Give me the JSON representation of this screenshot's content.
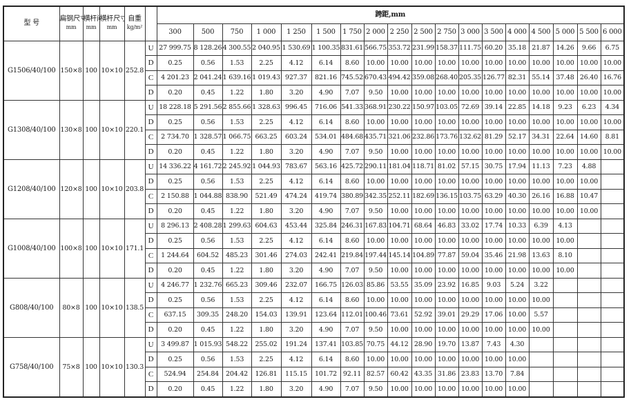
{
  "header": {
    "model": "型  号",
    "flat_steel": "扁钢尺寸",
    "flat_steel_unit": "mm",
    "bar_spacing": "横杆间距",
    "bar_spacing_unit": "mm",
    "bar_size": "横杆尺寸",
    "bar_size_unit": "mm",
    "weight": "自重",
    "weight_unit": "kg/m²",
    "span_title": "跨距,mm",
    "spans": [
      "300",
      "500",
      "750",
      "1 000",
      "1 250",
      "1 500",
      "1 750",
      "2 000",
      "2 250",
      "2 500",
      "2 750",
      "3 000",
      "3 500",
      "4 000",
      "4 500",
      "5 000",
      "5 500",
      "6 000"
    ]
  },
  "groups": [
    {
      "model": "G1506/40/100",
      "flat": "150×8",
      "spacing": "100",
      "bar": "10×10",
      "weight": "252.8",
      "rows": [
        {
          "label": "U",
          "values": [
            "27 999.75",
            "8 128.26",
            "4 300.55",
            "2 040.95",
            "1 530.69",
            "1 100.35",
            "831.61",
            "566.75",
            "353.72",
            "231.99",
            "158.37",
            "111.75",
            "60.20",
            "35.18",
            "21.87",
            "14.26",
            "9.66",
            "6.75"
          ]
        },
        {
          "label": "D",
          "values": [
            "0.25",
            "0.56",
            "1.53",
            "2.25",
            "4.12",
            "6.14",
            "8.60",
            "10.00",
            "10.00",
            "10.00",
            "10.00",
            "10.00",
            "10.00",
            "10.00",
            "10.00",
            "10.00",
            "10.00",
            "10.00"
          ]
        },
        {
          "label": "C",
          "values": [
            "4 201.23",
            "2 041.24",
            "1 639.16",
            "1 019.43",
            "927.37",
            "821.16",
            "745.52",
            "670.43",
            "494.42",
            "359.08",
            "268.40",
            "205.35",
            "126.77",
            "82.31",
            "55.14",
            "37.48",
            "26.40",
            "16.76"
          ]
        },
        {
          "label": "D",
          "values": [
            "0.20",
            "0.45",
            "1.22",
            "1.80",
            "3.20",
            "4.90",
            "7.07",
            "9.50",
            "10.00",
            "10.00",
            "10.00",
            "10.00",
            "10.00",
            "10.00",
            "10.00",
            "10.00",
            "10.00",
            "10.00"
          ]
        }
      ]
    },
    {
      "model": "G1308/40/100",
      "flat": "130×8",
      "spacing": "100",
      "bar": "10×10",
      "weight": "220.1",
      "rows": [
        {
          "label": "U",
          "values": [
            "18 228.18",
            "5 291.56",
            "2 855.66",
            "1 328.63",
            "996.45",
            "716.06",
            "541.33",
            "368.91",
            "230.22",
            "150.97",
            "103.05",
            "72.69",
            "39.14",
            "22.85",
            "14.18",
            "9.23",
            "6.23",
            "4.34"
          ]
        },
        {
          "label": "D",
          "values": [
            "0.25",
            "0.56",
            "1.53",
            "2.25",
            "4.12",
            "6.14",
            "8.60",
            "10.00",
            "10.00",
            "10.00",
            "10.00",
            "10.00",
            "10.00",
            "10.00",
            "10.00",
            "10.00",
            "10.00",
            "10.00"
          ]
        },
        {
          "label": "C",
          "values": [
            "2 734.70",
            "1 328.57",
            "1 066.75",
            "663.25",
            "603.24",
            "534.01",
            "484.68",
            "435.71",
            "321.06",
            "232.86",
            "173.76",
            "132.62",
            "81.29",
            "52.17",
            "34.31",
            "22.64",
            "14.60",
            "8.81"
          ]
        },
        {
          "label": "D",
          "values": [
            "0.20",
            "0.45",
            "1.22",
            "1.80",
            "3.20",
            "4.90",
            "7.07",
            "9.50",
            "10.00",
            "10.00",
            "10.00",
            "10.00",
            "10.00",
            "10.00",
            "10.00",
            "10.00",
            "10.00",
            "10.00"
          ]
        }
      ]
    },
    {
      "model": "G1208/40/100",
      "flat": "120×8",
      "spacing": "100",
      "bar": "10×10",
      "weight": "203.8",
      "rows": [
        {
          "label": "U",
          "values": [
            "14 336.22",
            "4 161.72",
            "2 245.92",
            "1 044.93",
            "783.67",
            "563.16",
            "425.72",
            "290.11",
            "181.04",
            "118.71",
            "81.02",
            "57.15",
            "30.75",
            "17.94",
            "11.13",
            "7.23",
            "4.88",
            ""
          ]
        },
        {
          "label": "D",
          "values": [
            "0.25",
            "0.56",
            "1.53",
            "2.25",
            "4.12",
            "6.14",
            "8.60",
            "10.00",
            "10.00",
            "10.00",
            "10.00",
            "10.00",
            "10.00",
            "10.00",
            "10.00",
            "10.00",
            "10.00",
            ""
          ]
        },
        {
          "label": "C",
          "values": [
            "2 150.88",
            "1 044.88",
            "838.90",
            "521.49",
            "474.24",
            "419.74",
            "380.89",
            "342.35",
            "252.11",
            "182.69",
            "136.15",
            "103.75",
            "63.29",
            "40.30",
            "26.16",
            "16.88",
            "10.47",
            ""
          ]
        },
        {
          "label": "D",
          "values": [
            "0.20",
            "0.45",
            "1.22",
            "1.80",
            "3.20",
            "4.90",
            "7.07",
            "9.50",
            "10.00",
            "10.00",
            "10.00",
            "10.00",
            "10.00",
            "10.00",
            "10.00",
            "10.00",
            "10.00",
            ""
          ]
        }
      ]
    },
    {
      "model": "G1008/40/100",
      "flat": "100×8",
      "spacing": "100",
      "bar": "10×10",
      "weight": "171.1",
      "rows": [
        {
          "label": "U",
          "values": [
            "8 296.13",
            "2 408.28",
            "1 299.63",
            "604.63",
            "453.44",
            "325.84",
            "246.31",
            "167.83",
            "104.71",
            "68.64",
            "46.83",
            "33.02",
            "17.74",
            "10.33",
            "6.39",
            "4.13",
            "",
            ""
          ]
        },
        {
          "label": "D",
          "values": [
            "0.25",
            "0.56",
            "1.53",
            "2.25",
            "4.12",
            "6.14",
            "8.60",
            "10.00",
            "10.00",
            "10.00",
            "10.00",
            "10.00",
            "10.00",
            "10.00",
            "10.00",
            "10.00",
            "",
            ""
          ]
        },
        {
          "label": "C",
          "values": [
            "1 244.64",
            "604.52",
            "485.23",
            "301.46",
            "274.03",
            "242.41",
            "219.84",
            "197.44",
            "145.14",
            "104.89",
            "77.87",
            "59.04",
            "35.46",
            "21.98",
            "13.63",
            "8.10",
            "",
            ""
          ]
        },
        {
          "label": "D",
          "values": [
            "0.20",
            "0.45",
            "1.22",
            "1.80",
            "3.20",
            "4.90",
            "7.07",
            "9.50",
            "10.00",
            "10.00",
            "10.00",
            "10.00",
            "10.00",
            "10.00",
            "10.00",
            "10.00",
            "",
            ""
          ]
        }
      ]
    },
    {
      "model": "G808/40/100",
      "flat": "80×8",
      "spacing": "100",
      "bar": "10×10",
      "weight": "138.5",
      "rows": [
        {
          "label": "U",
          "values": [
            "4 246.77",
            "1 232.76",
            "665.23",
            "309.46",
            "232.07",
            "166.75",
            "126.03",
            "85.86",
            "53.55",
            "35.09",
            "23.92",
            "16.85",
            "9.03",
            "5.24",
            "3.22",
            "",
            "",
            ""
          ]
        },
        {
          "label": "D",
          "values": [
            "0.25",
            "0.56",
            "1.53",
            "2.25",
            "4.12",
            "6.14",
            "8.60",
            "10.00",
            "10.00",
            "10.00",
            "10.00",
            "10.00",
            "10.00",
            "10.00",
            "10.00",
            "",
            "",
            ""
          ]
        },
        {
          "label": "C",
          "values": [
            "637.15",
            "309.35",
            "248.20",
            "154.03",
            "139.91",
            "123.64",
            "112.01",
            "100.46",
            "73.61",
            "52.92",
            "39.01",
            "29.29",
            "17.06",
            "10.00",
            "5.57",
            "",
            "",
            ""
          ]
        },
        {
          "label": "D",
          "values": [
            "0.20",
            "0.45",
            "1.22",
            "1.80",
            "3.20",
            "4.90",
            "7.07",
            "9.50",
            "10.00",
            "10.00",
            "10.00",
            "10.00",
            "10.00",
            "10.00",
            "10.00",
            "",
            "",
            ""
          ]
        }
      ]
    },
    {
      "model": "G758/40/100",
      "flat": "75×8",
      "spacing": "100",
      "bar": "10×10",
      "weight": "130.3",
      "rows": [
        {
          "label": "U",
          "values": [
            "3 499.87",
            "1 015.93",
            "548.22",
            "255.02",
            "191.24",
            "137.41",
            "103.85",
            "70.75",
            "44.12",
            "28.90",
            "19.70",
            "13.87",
            "7.43",
            "4.30",
            "",
            "",
            "",
            ""
          ]
        },
        {
          "label": "D",
          "values": [
            "0.25",
            "0.56",
            "1.53",
            "2.25",
            "4.12",
            "6.14",
            "8.60",
            "10.00",
            "10.00",
            "10.00",
            "10.00",
            "10.00",
            "10.00",
            "10.00",
            "",
            "",
            "",
            ""
          ]
        },
        {
          "label": "C",
          "values": [
            "524.94",
            "254.84",
            "204.42",
            "126.81",
            "115.15",
            "101.72",
            "92.11",
            "82.57",
            "60.42",
            "43.35",
            "31.86",
            "23.83",
            "13.70",
            "7.84",
            "",
            "",
            "",
            ""
          ]
        },
        {
          "label": "D",
          "values": [
            "0.20",
            "0.45",
            "1.22",
            "1.80",
            "3.20",
            "4.90",
            "7.07",
            "9.50",
            "10.00",
            "10.00",
            "10.00",
            "10.00",
            "10.00",
            "10.00",
            "",
            "",
            "",
            ""
          ]
        }
      ]
    }
  ]
}
